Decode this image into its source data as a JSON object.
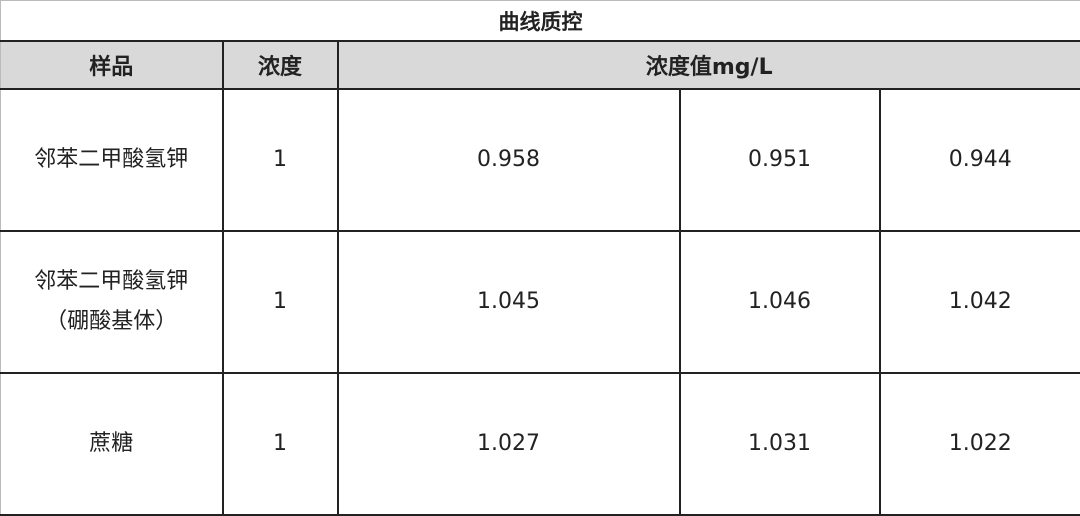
{
  "title": "曲线质控",
  "headers": {
    "sample": "样品",
    "concentration": "浓度",
    "values": "浓度值mg/L"
  },
  "rows": [
    {
      "sample": "邻苯二甲酸氢钾",
      "sample_note": "",
      "concentration": "1",
      "values": [
        "0.958",
        "0.951",
        "0.944"
      ]
    },
    {
      "sample": "邻苯二甲酸氢钾",
      "sample_note": "（硼酸基体）",
      "concentration": "1",
      "values": [
        "1.045",
        "1.046",
        "1.042"
      ]
    },
    {
      "sample": "蔗糖",
      "sample_note": "",
      "concentration": "1",
      "values": [
        "1.027",
        "1.031",
        "1.022"
      ]
    }
  ],
  "colors": {
    "header_bg": "#d9d9d9",
    "border": "#222222"
  }
}
